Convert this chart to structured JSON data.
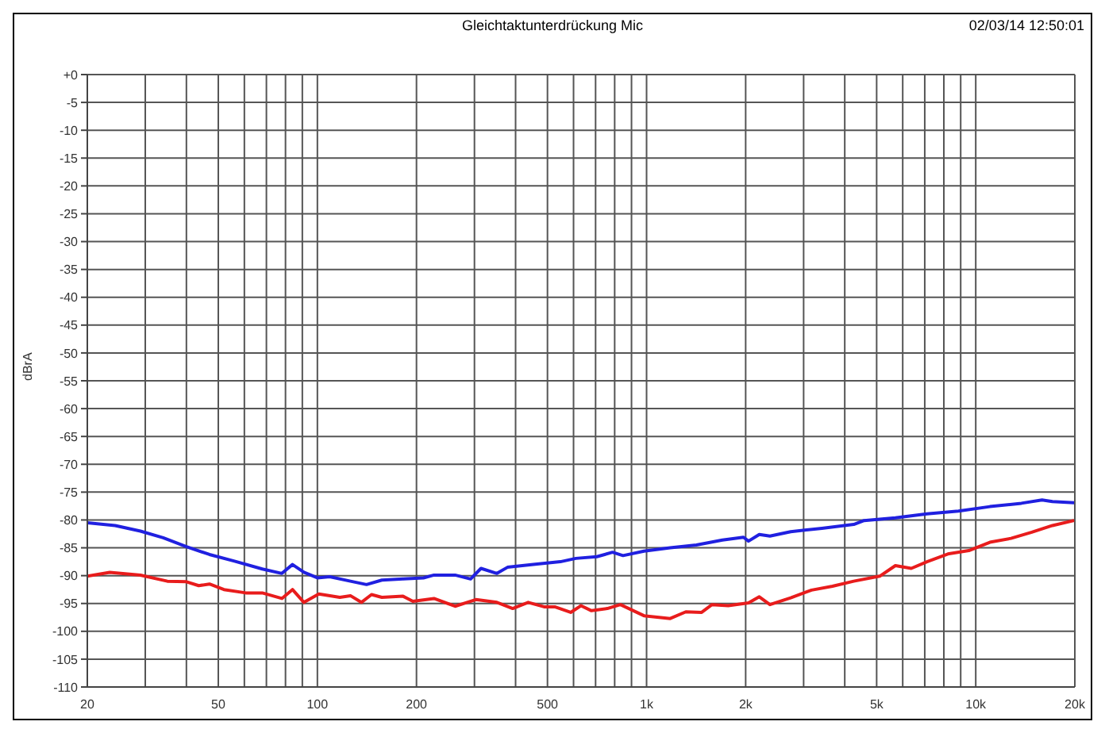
{
  "chart_data": {
    "type": "line",
    "title": "Gleichtaktunterdrückung Mic",
    "ylabel": "dBrA",
    "annotations": [
      "02/03/14 12:50:01"
    ],
    "log": "x",
    "grid": true,
    "legend": false,
    "marker": "none",
    "line_style": "solid",
    "xlim": [
      20,
      20000
    ],
    "xticks": [
      20,
      {
        "value": 30,
        "label": null
      },
      {
        "value": 40,
        "label": null
      },
      50,
      {
        "value": 60,
        "label": null
      },
      {
        "value": 70,
        "label": null
      },
      {
        "value": 80,
        "label": null
      },
      {
        "value": 90,
        "label": null
      },
      100,
      200,
      {
        "value": 300,
        "label": null
      },
      {
        "value": 400,
        "label": null
      },
      500,
      {
        "value": 600,
        "label": null
      },
      {
        "value": 700,
        "label": null
      },
      {
        "value": 800,
        "label": null
      },
      {
        "value": 900,
        "label": null
      },
      {
        "value": 1000,
        "label": "1k"
      },
      {
        "value": 2000,
        "label": "2k"
      },
      {
        "value": 3000,
        "label": null
      },
      {
        "value": 4000,
        "label": null
      },
      {
        "value": 5000,
        "label": "5k"
      },
      {
        "value": 6000,
        "label": null
      },
      {
        "value": 7000,
        "label": null
      },
      {
        "value": 8000,
        "label": null
      },
      {
        "value": 9000,
        "label": null
      },
      {
        "value": 10000,
        "label": "10k"
      },
      {
        "value": 20000,
        "label": "20k"
      }
    ],
    "ylim": [
      -110,
      0
    ],
    "yticks": [
      {
        "value": 0,
        "label": "+0"
      },
      -5,
      -10,
      -15,
      -20,
      -25,
      -30,
      -35,
      -40,
      -45,
      -50,
      -55,
      -60,
      -65,
      -70,
      -75,
      -80,
      -85,
      -90,
      -95,
      -100,
      -105,
      -110
    ],
    "series": [
      {
        "color": "#2020e0",
        "x": [
          20,
          24.3,
          29,
          34,
          40,
          47,
          56,
          68,
          78,
          84,
          91,
          100,
          109,
          126,
          141,
          157,
          182,
          210,
          226,
          262,
          292,
          314,
          351,
          378,
          453,
          547,
          610,
          706,
          788,
          848,
          982,
          1180,
          1417,
          1700,
          1970,
          2040,
          2200,
          2370,
          2740,
          3410,
          4260,
          4580,
          5700,
          7110,
          8860,
          11040,
          13760,
          15900,
          17100,
          19900
        ],
        "values": [
          -80.5,
          -81,
          -82,
          -83.2,
          -84.8,
          -86.2,
          -87.4,
          -88.8,
          -89.6,
          -88,
          -89.4,
          -90.4,
          -90.2,
          -91,
          -91.6,
          -90.8,
          -90.6,
          -90.4,
          -89.9,
          -89.9,
          -90.6,
          -88.7,
          -89.6,
          -88.5,
          -88,
          -87.5,
          -86.9,
          -86.6,
          -85.8,
          -86.4,
          -85.6,
          -85,
          -84.5,
          -83.6,
          -83.1,
          -83.8,
          -82.6,
          -82.9,
          -82.1,
          -81.5,
          -80.8,
          -80.1,
          -79.6,
          -78.9,
          -78.4,
          -77.6,
          -77,
          -76.4,
          -76.7,
          -76.9
        ]
      },
      {
        "color": "#e81c1c",
        "x": [
          20,
          23.4,
          29,
          35,
          40,
          43.6,
          47,
          52,
          60.6,
          68,
          78,
          84,
          91,
          101,
          117,
          126,
          136,
          146,
          157,
          182,
          195,
          226,
          262,
          303,
          351,
          392,
          437,
          488,
          526,
          588,
          632,
          680,
          760,
          833,
          912,
          982,
          1180,
          1316,
          1470,
          1580,
          1770,
          2040,
          2200,
          2370,
          2740,
          3170,
          3670,
          4260,
          5110,
          5700,
          6370,
          7110,
          8230,
          9530,
          11040,
          12800,
          14800,
          17100,
          19900
        ],
        "values": [
          -90.1,
          -89.4,
          -89.9,
          -91,
          -91.1,
          -91.8,
          -91.5,
          -92.5,
          -93.1,
          -93.1,
          -94.1,
          -92.5,
          -94.8,
          -93.3,
          -93.9,
          -93.6,
          -94.8,
          -93.4,
          -93.9,
          -93.7,
          -94.6,
          -94.1,
          -95.5,
          -94.3,
          -94.8,
          -95.9,
          -94.8,
          -95.6,
          -95.6,
          -96.6,
          -95.4,
          -96.3,
          -95.9,
          -95.2,
          -96.3,
          -97.2,
          -97.7,
          -96.5,
          -96.6,
          -95.2,
          -95.4,
          -94.9,
          -93.8,
          -95.2,
          -94,
          -92.6,
          -91.9,
          -91,
          -90.1,
          -88.2,
          -88.7,
          -87.5,
          -86.1,
          -85.5,
          -84,
          -83.3,
          -82.2,
          -81,
          -80.1
        ]
      }
    ]
  }
}
